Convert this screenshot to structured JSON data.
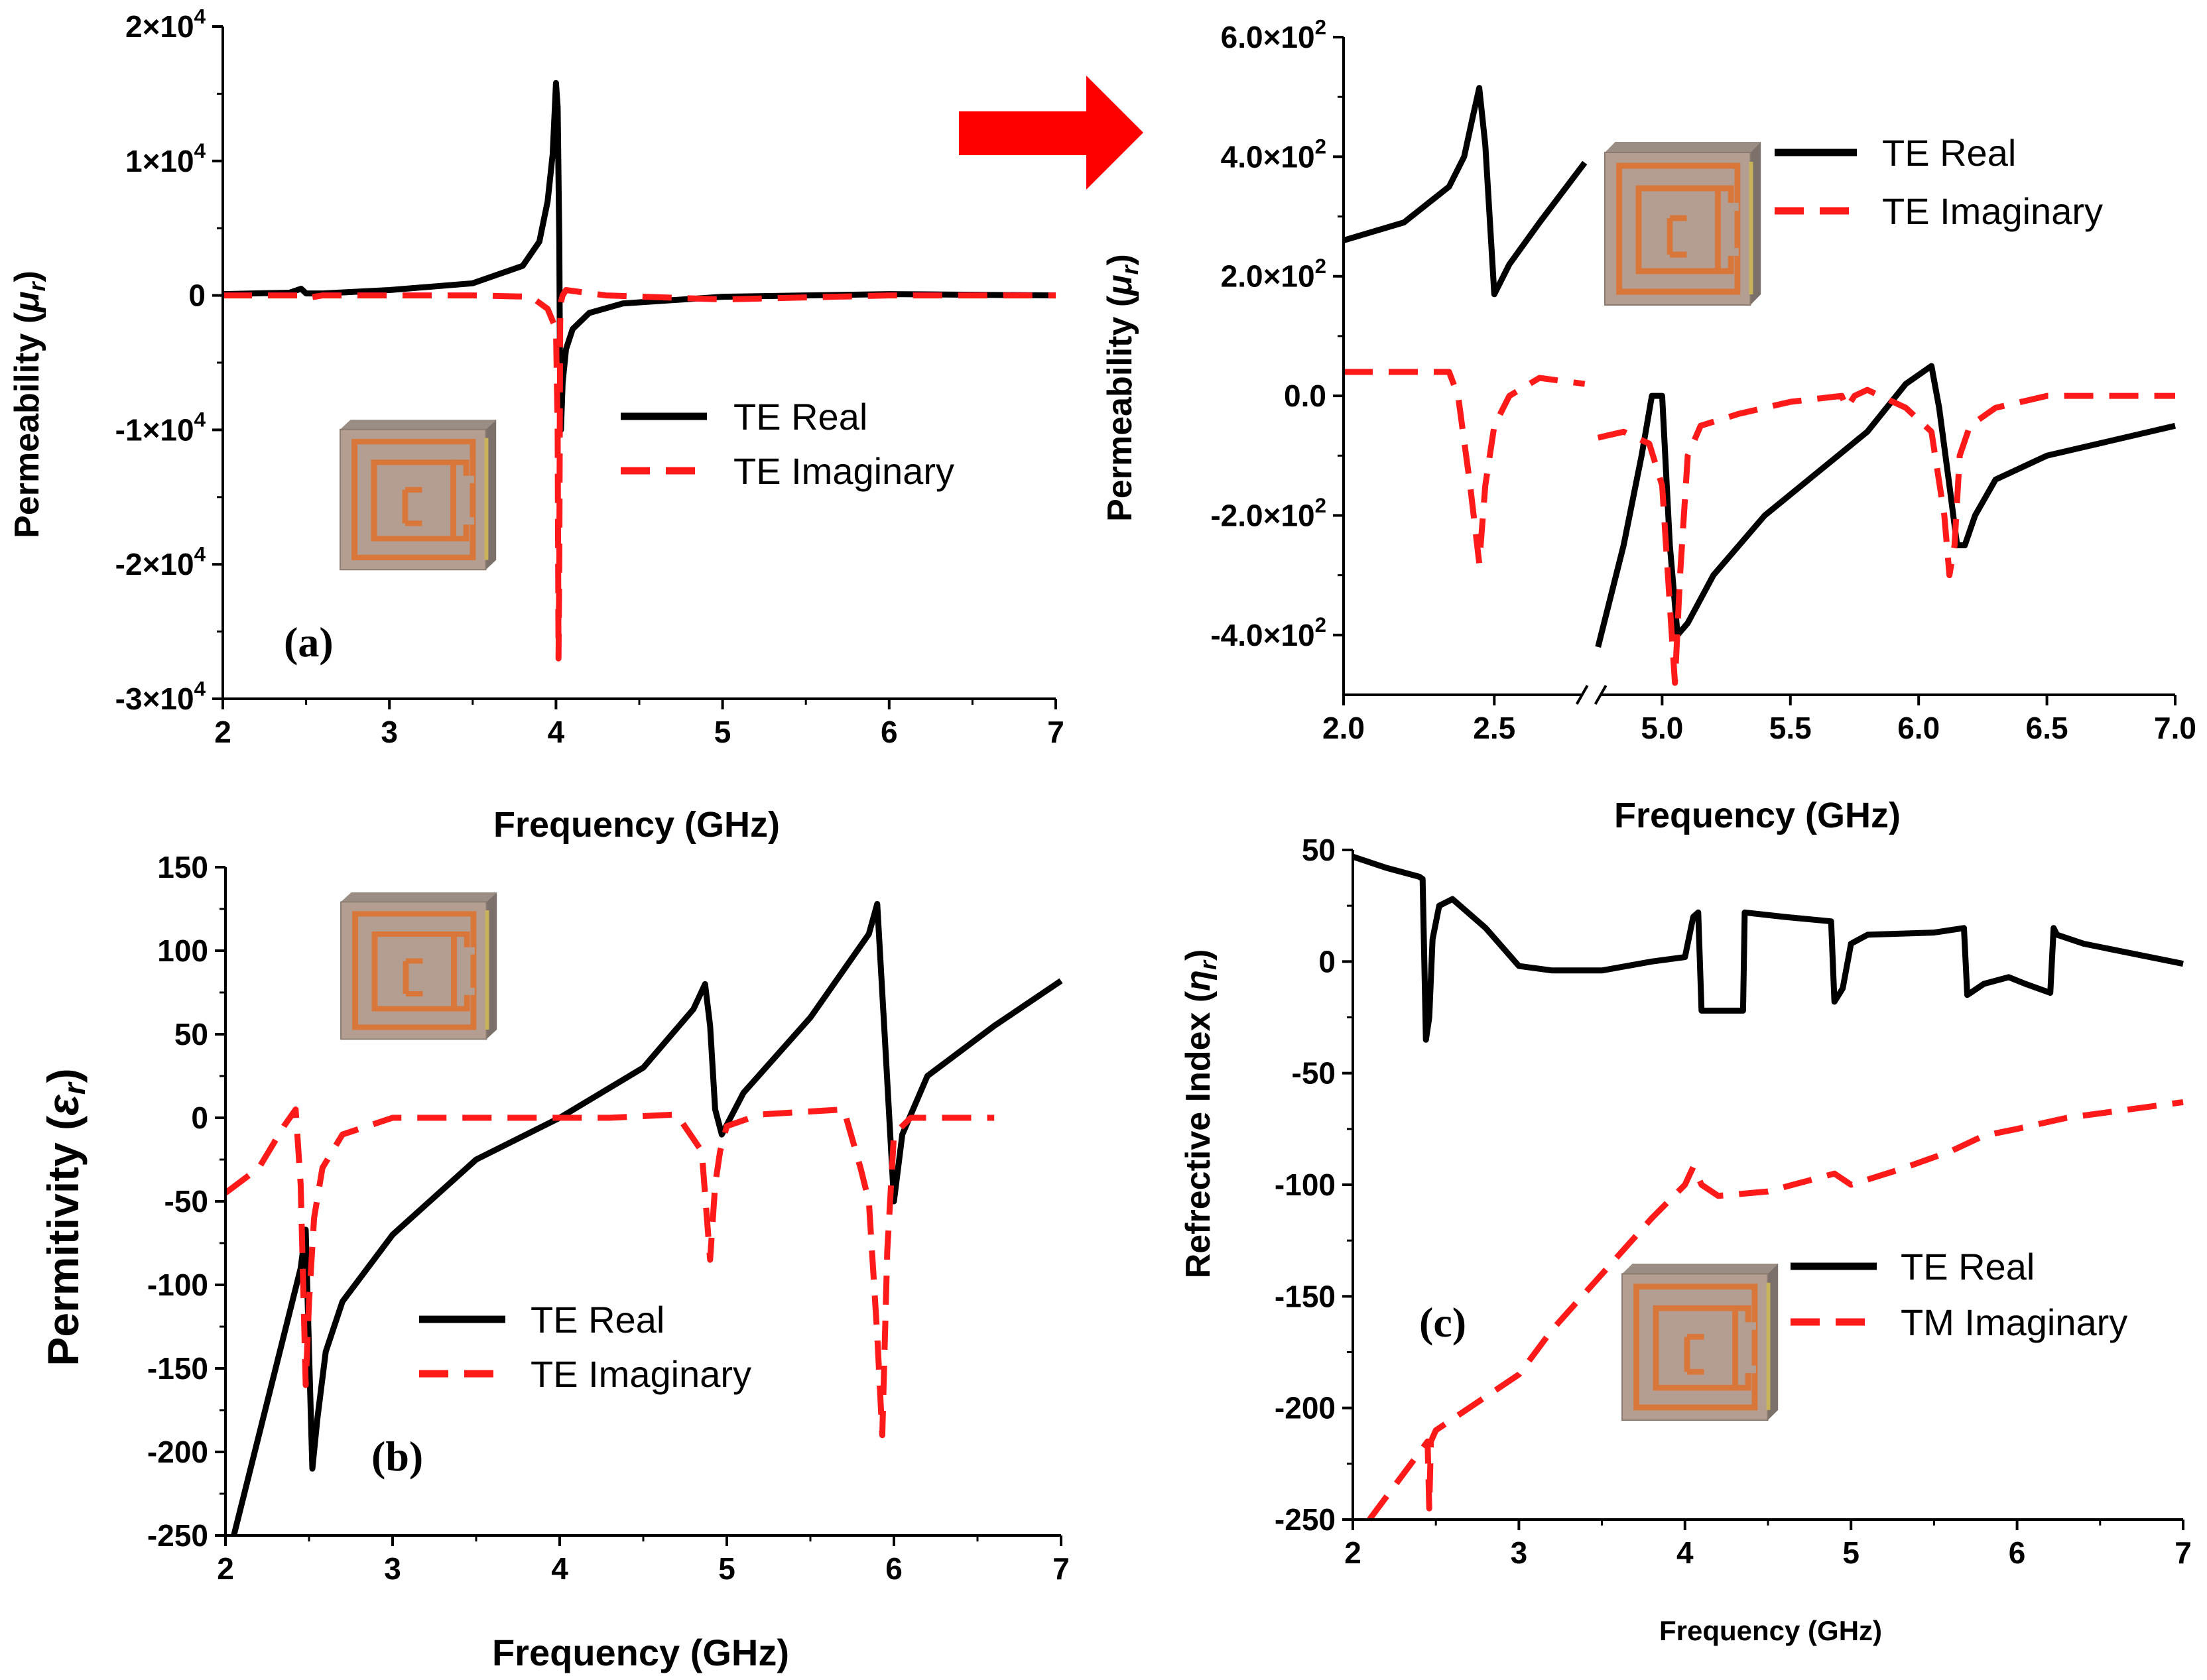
{
  "colors": {
    "real": "#000000",
    "imag": "#ff1a1a",
    "arrow": "#ff0000"
  },
  "chart_data": [
    {
      "id": "a",
      "type": "line",
      "tag": "(a)",
      "xlabel": "Frequency (GHz)",
      "ylabel": "Permeability (μr)",
      "xlim": [
        2,
        7
      ],
      "ylim": [
        -30000,
        20000
      ],
      "x_ticks": [
        2,
        3,
        4,
        5,
        6,
        7
      ],
      "x_tick_labels": [
        "2",
        "3",
        "4",
        "5",
        "6",
        "7"
      ],
      "y_ticks": [
        -30000,
        -20000,
        -10000,
        0,
        10000,
        20000
      ],
      "y_tick_labels": [
        "-3×10^4",
        "-2×10^4",
        "-1×10^4",
        "0",
        "1×10^4",
        "2×10^4"
      ],
      "legend": [
        "TE Real",
        "TE Imaginary"
      ],
      "series": [
        {
          "name": "TE Real",
          "style": "solid",
          "x": [
            2,
            2.4,
            2.47,
            2.5,
            2.6,
            3.0,
            3.5,
            3.8,
            3.9,
            3.95,
            3.98,
            4.0,
            4.01,
            4.02,
            4.025,
            4.03,
            4.04,
            4.06,
            4.1,
            4.2,
            4.4,
            5.0,
            6.0,
            7.0
          ],
          "y": [
            100,
            200,
            500,
            150,
            150,
            400,
            900,
            2200,
            4000,
            7000,
            10500,
            15800,
            14000,
            4000,
            -8000,
            -10000,
            -6500,
            -4000,
            -2500,
            -1300,
            -600,
            -100,
            100,
            0
          ]
        },
        {
          "name": "TE Imaginary",
          "style": "dashed",
          "x": [
            2,
            2.45,
            2.5,
            2.6,
            3.0,
            3.5,
            3.85,
            3.95,
            4.0,
            4.01,
            4.015,
            4.02,
            4.025,
            4.03,
            4.04,
            4.06,
            4.12,
            4.3,
            5.0,
            6.0,
            7.0
          ],
          "y": [
            0,
            0,
            -200,
            0,
            0,
            0,
            -100,
            -1000,
            -2500,
            -10000,
            -27000,
            -20000,
            -2000,
            -500,
            0,
            400,
            300,
            0,
            -300,
            0,
            0
          ]
        }
      ]
    },
    {
      "id": "a-zoom",
      "type": "line",
      "tag": "",
      "xlabel": "Frequency (GHz)",
      "ylabel": "Permeability (μr)",
      "xlim": [
        2,
        7
      ],
      "ylim": [
        -500,
        600
      ],
      "axis_break": [
        2.8,
        4.75
      ],
      "x_ticks": [
        2.0,
        2.5,
        5.0,
        5.5,
        6.0,
        6.5,
        7.0
      ],
      "x_tick_labels": [
        "2.0",
        "2.5",
        "5.0",
        "5.5",
        "6.0",
        "6.5",
        "7.0"
      ],
      "y_ticks": [
        -400,
        -200,
        0,
        200,
        400,
        600
      ],
      "y_tick_labels": [
        "-4.0×10^2",
        "-2.0×10^2",
        "0.0",
        "2.0×10^2",
        "4.0×10^2",
        "6.0×10^2"
      ],
      "legend": [
        "TE Real",
        "TE Imaginary"
      ],
      "series": [
        {
          "name": "TE Real",
          "style": "solid",
          "x": [
            2.0,
            2.2,
            2.35,
            2.4,
            2.43,
            2.45,
            2.47,
            2.5,
            2.55,
            2.65,
            2.8,
            4.75,
            4.85,
            4.92,
            4.96,
            5.0,
            5.03,
            5.06,
            5.1,
            5.2,
            5.4,
            5.6,
            5.8,
            5.95,
            6.05,
            6.08,
            6.12,
            6.15,
            6.18,
            6.22,
            6.3,
            6.5,
            7.0
          ],
          "y": [
            260,
            290,
            350,
            400,
            470,
            515,
            420,
            170,
            220,
            290,
            390,
            -420,
            -250,
            -100,
            0,
            0,
            -250,
            -400,
            -380,
            -300,
            -200,
            -130,
            -60,
            20,
            50,
            -20,
            -150,
            -250,
            -250,
            -200,
            -140,
            -100,
            -50
          ]
        },
        {
          "name": "TE Imaginary",
          "style": "dashed",
          "x": [
            2.0,
            2.35,
            2.38,
            2.42,
            2.45,
            2.47,
            2.5,
            2.55,
            2.65,
            2.8,
            4.75,
            4.85,
            4.95,
            5.0,
            5.03,
            5.05,
            5.07,
            5.1,
            5.15,
            5.3,
            5.5,
            5.7,
            5.72,
            5.75,
            5.8,
            5.95,
            6.05,
            6.1,
            6.12,
            6.14,
            6.16,
            6.2,
            6.3,
            6.5,
            7.0
          ],
          "y": [
            40,
            40,
            0,
            -150,
            -280,
            -150,
            -50,
            0,
            30,
            20,
            -70,
            -60,
            -80,
            -150,
            -350,
            -480,
            -300,
            -100,
            -50,
            -30,
            -10,
            0,
            -20,
            0,
            10,
            -20,
            -60,
            -200,
            -300,
            -250,
            -100,
            -50,
            -20,
            0,
            0
          ]
        }
      ]
    },
    {
      "id": "b",
      "type": "line",
      "tag": "(b)",
      "xlabel": "Frequency (GHz)",
      "ylabel": "Permitivity (εr)",
      "xlim": [
        2,
        7
      ],
      "ylim": [
        -250,
        150
      ],
      "x_ticks": [
        2,
        3,
        4,
        5,
        6,
        7
      ],
      "x_tick_labels": [
        "2",
        "3",
        "4",
        "5",
        "6",
        "7"
      ],
      "y_ticks": [
        -250,
        -200,
        -150,
        -100,
        -50,
        0,
        50,
        100,
        150
      ],
      "y_tick_labels": [
        "-250",
        "-200",
        "-150",
        "-100",
        "-50",
        "0",
        "50",
        "100",
        "150"
      ],
      "legend": [
        "TE Real",
        "TE Imaginary"
      ],
      "series": [
        {
          "name": "TE Real",
          "style": "solid",
          "x": [
            2.05,
            2.2,
            2.35,
            2.45,
            2.48,
            2.5,
            2.52,
            2.55,
            2.6,
            2.7,
            3.0,
            3.5,
            4.0,
            4.5,
            4.8,
            4.87,
            4.9,
            4.93,
            4.97,
            5.1,
            5.5,
            5.85,
            5.9,
            5.95,
            6.0,
            6.05,
            6.2,
            6.6,
            7.0
          ],
          "y": [
            -250,
            -190,
            -130,
            -90,
            -67,
            -140,
            -210,
            -180,
            -140,
            -110,
            -70,
            -25,
            0,
            30,
            65,
            80,
            55,
            5,
            -10,
            15,
            60,
            110,
            128,
            40,
            -50,
            -10,
            25,
            55,
            82
          ]
        },
        {
          "name": "TE Imaginary",
          "style": "dashed",
          "x": [
            2.0,
            2.2,
            2.35,
            2.42,
            2.45,
            2.48,
            2.5,
            2.53,
            2.58,
            2.7,
            3.0,
            4.0,
            4.3,
            4.7,
            4.85,
            4.9,
            4.93,
            4.96,
            5.0,
            5.2,
            5.7,
            5.8,
            5.85,
            5.9,
            5.93,
            5.96,
            6.0,
            6.1,
            6.6
          ],
          "y": [
            -45,
            -30,
            -5,
            5,
            -40,
            -160,
            -110,
            -60,
            -30,
            -10,
            0,
            0,
            0,
            2,
            -20,
            -85,
            -40,
            -20,
            -5,
            2,
            5,
            -30,
            -50,
            -130,
            -190,
            -80,
            -10,
            0,
            0
          ]
        }
      ]
    },
    {
      "id": "c",
      "type": "line",
      "tag": "(c)",
      "xlabel": "Frequency (GHz)",
      "ylabel": "Refrective Index (ηr)",
      "xlim": [
        2,
        7
      ],
      "ylim": [
        -250,
        50
      ],
      "x_ticks": [
        2,
        3,
        4,
        5,
        6,
        7
      ],
      "x_tick_labels": [
        "2",
        "3",
        "4",
        "5",
        "6",
        "7"
      ],
      "y_ticks": [
        -250,
        -200,
        -150,
        -100,
        -50,
        0,
        50
      ],
      "y_tick_labels": [
        "-250",
        "-200",
        "-150",
        "-100",
        "-50",
        "0",
        "50"
      ],
      "legend": [
        "TE Real",
        "TM Imaginary"
      ],
      "series": [
        {
          "name": "TE Real",
          "style": "solid",
          "x": [
            2.0,
            2.2,
            2.4,
            2.42,
            2.44,
            2.46,
            2.48,
            2.52,
            2.6,
            2.8,
            3.0,
            3.2,
            3.5,
            3.8,
            4.0,
            4.05,
            4.08,
            4.1,
            4.35,
            4.36,
            4.6,
            4.88,
            4.9,
            4.95,
            5.0,
            5.1,
            5.5,
            5.68,
            5.7,
            5.72,
            5.8,
            5.95,
            6.05,
            6.2,
            6.22,
            6.24,
            6.4,
            7.0
          ],
          "y": [
            47,
            42,
            38,
            37,
            -35,
            -25,
            10,
            25,
            28,
            15,
            -2,
            -4,
            -4,
            0,
            2,
            20,
            22,
            -22,
            -22,
            22,
            20,
            18,
            -18,
            -12,
            8,
            12,
            13,
            15,
            -15,
            -14,
            -10,
            -7,
            -10,
            -14,
            15,
            12,
            8,
            -1
          ]
        },
        {
          "name": "TM Imaginary",
          "style": "dashed",
          "x": [
            2.1,
            2.25,
            2.4,
            2.45,
            2.46,
            2.47,
            2.5,
            2.6,
            2.8,
            3.0,
            3.2,
            3.5,
            3.8,
            4.0,
            4.05,
            4.1,
            4.2,
            4.5,
            4.9,
            5.0,
            5.3,
            5.6,
            5.8,
            6.0,
            6.3,
            6.6,
            7.0
          ],
          "y": [
            -250,
            -235,
            -220,
            -215,
            -245,
            -215,
            -210,
            -205,
            -195,
            -185,
            -165,
            -140,
            -115,
            -100,
            -92,
            -100,
            -105,
            -103,
            -95,
            -100,
            -93,
            -85,
            -78,
            -75,
            -70,
            -67,
            -63
          ]
        }
      ]
    }
  ]
}
